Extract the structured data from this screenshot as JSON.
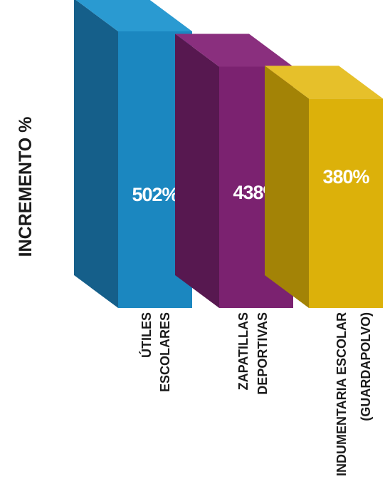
{
  "chart_data": {
    "type": "bar",
    "style": "3d",
    "ylabel": "INCREMENTO %",
    "categories": [
      [
        "ÚTILES",
        "ESCOLARES"
      ],
      [
        "ZAPATILLAS",
        "DEPORTIVAS"
      ],
      [
        "INDUMENTARIA ESCOLAR",
        "(GUARDAPOLVO)"
      ]
    ],
    "values": [
      502,
      438,
      380
    ],
    "value_labels": [
      "502%",
      "438%",
      "380%"
    ],
    "colors": [
      {
        "front": "#1b87c0",
        "side": "#155f8a",
        "top": "#2a9ad1"
      },
      {
        "front": "#7b2270",
        "side": "#571850",
        "top": "#8a2f7e"
      },
      {
        "front": "#dcb10a",
        "side": "#a38306",
        "top": "#e6c02a"
      }
    ],
    "grid": false,
    "legend": "none"
  }
}
